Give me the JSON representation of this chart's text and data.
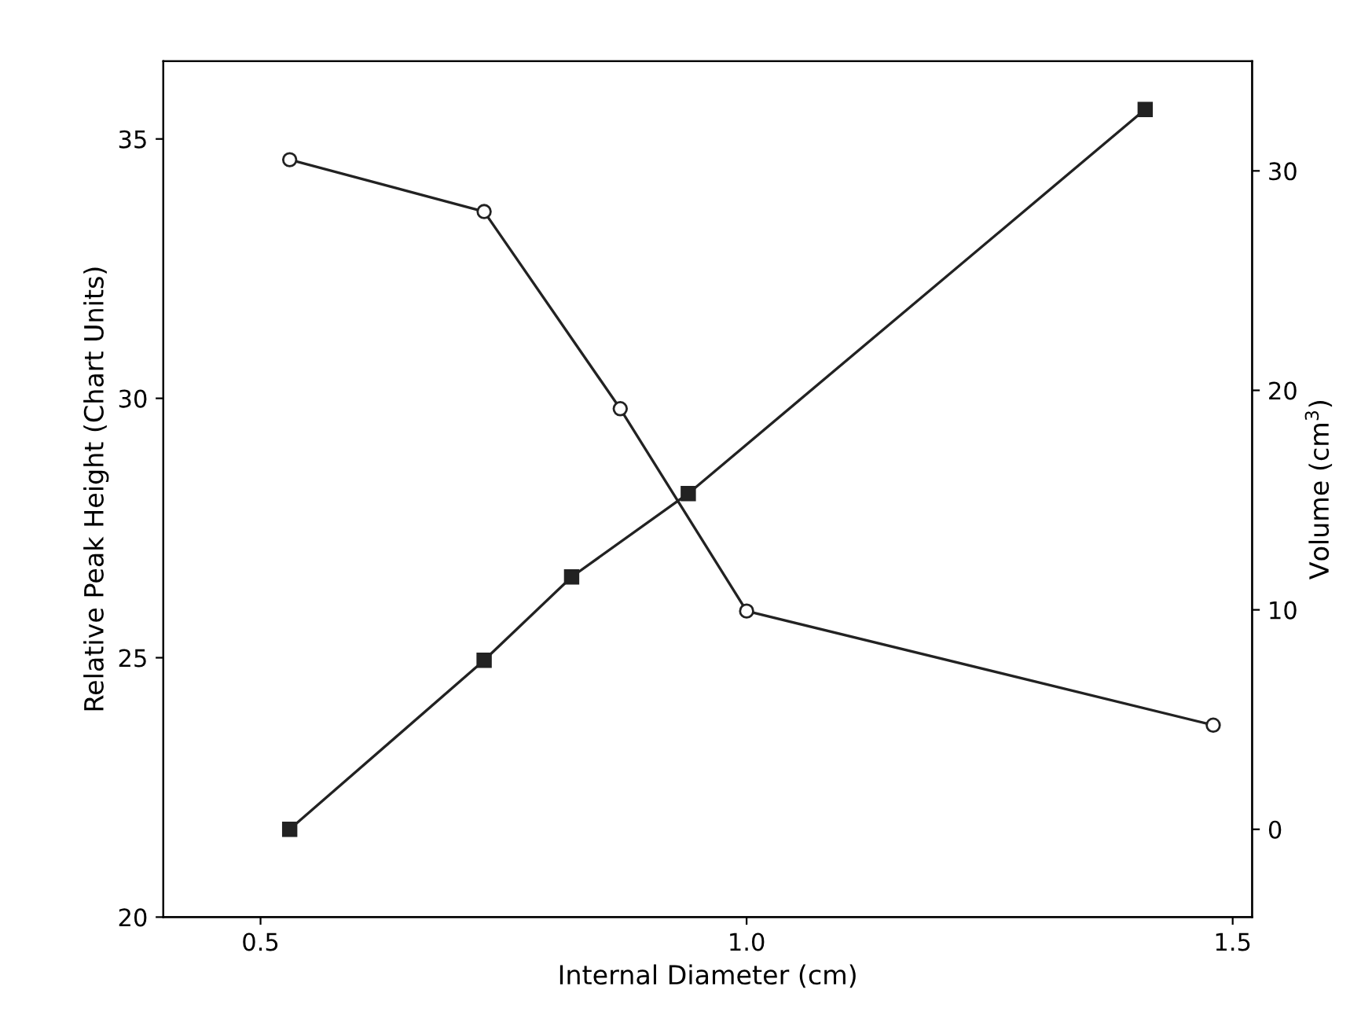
{
  "chart_data": {
    "type": "line",
    "xlabel": "Internal Diameter (cm)",
    "ylabel": "Relative Peak Height (Chart Units)",
    "y2label": "Volume (cm$^{3}$)",
    "series": [
      {
        "color": "#222222",
        "marker": "circle",
        "x": [
          0.53,
          0.73,
          0.87,
          1.0,
          1.48
        ],
        "values": [
          34.6,
          33.6,
          29.8,
          25.9,
          23.7
        ]
      },
      {
        "color": "#222222",
        "marker": "square",
        "axis": "y2",
        "x": [
          0.53,
          0.73,
          0.82,
          0.94,
          1.41
        ],
        "values": [
          0,
          7.7,
          11.5,
          15.3,
          32.8
        ]
      }
    ],
    "xlim": [
      0.4,
      1.52
    ],
    "xticks": [
      0.5,
      {
        "value": 1.0,
        "label": "1.0"
      },
      1.5
    ],
    "ylim": [
      20,
      36.5
    ],
    "yticks": [
      20,
      25,
      30,
      35
    ],
    "y2lim": [
      -4,
      35
    ],
    "y2ticks": [
      0,
      10,
      20,
      30
    ],
    "grid": false,
    "legend": false,
    "line_style": "solid"
  }
}
